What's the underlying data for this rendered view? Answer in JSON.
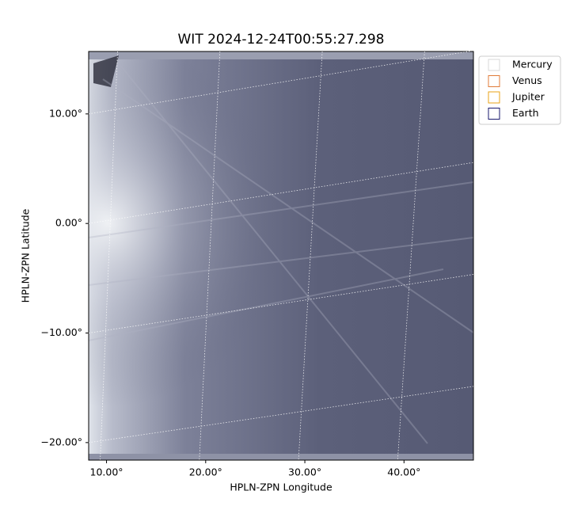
{
  "chart_data": {
    "type": "image",
    "title": "WIT 2024-12-24T00:55:27.298",
    "x_label": "HPLN-ZPN Longitude",
    "y_label": "HPLN-ZPN Latitude",
    "xlim": [
      8.2,
      47.0
    ],
    "ylim": [
      -21.6,
      15.7
    ],
    "xticks": [
      {
        "value": 10,
        "label": "10.00°"
      },
      {
        "value": 20,
        "label": "20.00°"
      },
      {
        "value": 30,
        "label": "30.00°"
      },
      {
        "value": 40,
        "label": "40.00°"
      }
    ],
    "yticks": [
      {
        "value": -20,
        "label": "−20.00°"
      },
      {
        "value": -10,
        "label": "−10.00°"
      },
      {
        "value": 0,
        "label": "0.00°"
      },
      {
        "value": 10,
        "label": "10.00°"
      }
    ],
    "grid": true,
    "legend_position": "upper right",
    "legend": [
      {
        "name": "Mercury",
        "color": "#d9d9d9"
      },
      {
        "name": "Venus",
        "color": "#e07b39"
      },
      {
        "name": "Jupiter",
        "color": "#e8a317"
      },
      {
        "name": "Earth",
        "color": "#1a1a6e"
      }
    ]
  }
}
